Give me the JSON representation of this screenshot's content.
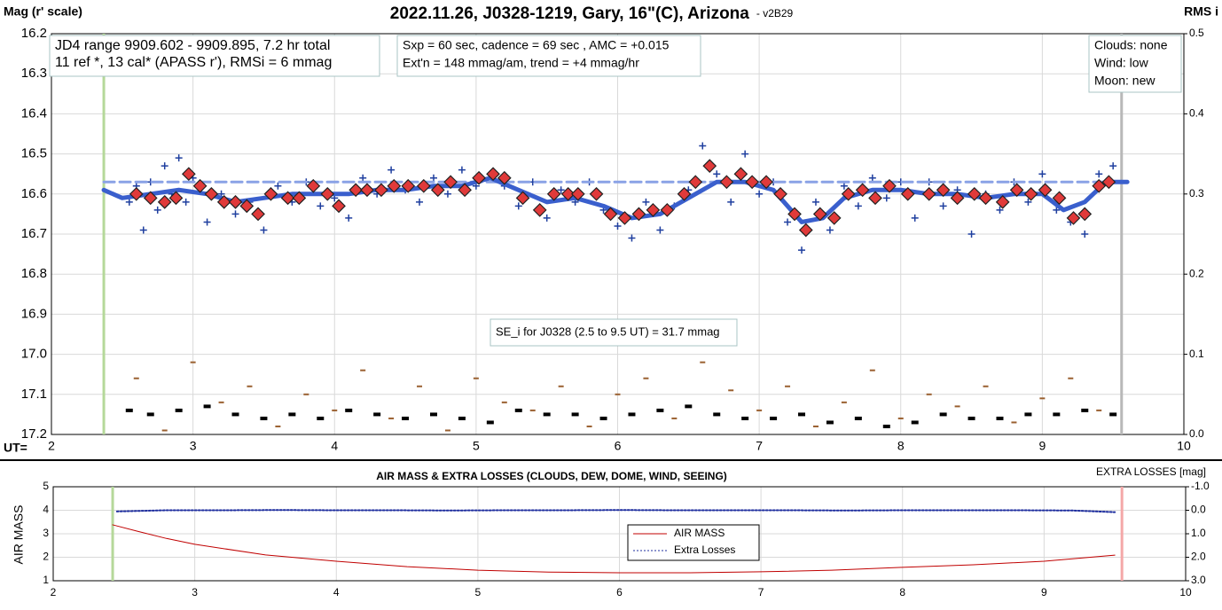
{
  "chart_data": [
    {
      "type": "scatter",
      "title": "2022.11.26, J0328-1219, Gary, 16\"(C), Arizona",
      "subtitle": "- v2B29",
      "ylabel": "Mag (r' scale)",
      "y2label": "RMS i",
      "xlabel": "UT=",
      "xlim": [
        2,
        10
      ],
      "xticks": [
        2,
        3,
        4,
        5,
        6,
        7,
        8,
        9,
        10
      ],
      "ylim": [
        16.2,
        17.2
      ],
      "y_inverted": true,
      "yticks": [
        16.2,
        16.3,
        16.4,
        16.5,
        16.6,
        16.7,
        16.8,
        16.9,
        {
          "value": 17,
          "label": "17.0"
        },
        17.1,
        17.2
      ],
      "y2lim": [
        0,
        0.5
      ],
      "y2ticks": [
        {
          "value": 0,
          "label": "0.0"
        },
        0.1,
        0.2,
        0.3,
        0.4,
        0.5
      ],
      "grid": true,
      "vlines": [
        {
          "x": 2.37,
          "color": "#b5d89a"
        },
        {
          "x": 9.56,
          "color": "#b8b8b8"
        }
      ],
      "annotations": [
        {
          "lines": [
            "JD4 range 9909.602 - 9909.895, 7.2 hr total",
            "11 ref *, 13 cal*  (APASS r'), RMSi = 6 mmag"
          ]
        },
        {
          "lines": [
            "Sxp = 60 sec, cadence = 69 sec , AMC = +0.015",
            "Ext'n = 148 mmag/am, trend = +4 mmag/hr"
          ]
        },
        {
          "lines": [
            "Clouds: none",
            "Wind:  low",
            "Moon: new"
          ]
        },
        {
          "lines": [
            "SE_i for J0328 (2.5 to 9.5 UT) = 31.7 mmag"
          ]
        }
      ],
      "series": [
        {
          "style": "cross",
          "color": "#1f3f9f",
          "x": [
            2.55,
            2.6,
            2.65,
            2.7,
            2.75,
            2.8,
            2.85,
            2.9,
            2.95,
            3.0,
            3.1,
            3.2,
            3.3,
            3.4,
            3.5,
            3.6,
            3.7,
            3.8,
            3.9,
            4.0,
            4.1,
            4.2,
            4.3,
            4.4,
            4.5,
            4.6,
            4.7,
            4.8,
            4.9,
            5.0,
            5.1,
            5.2,
            5.3,
            5.4,
            5.5,
            5.6,
            5.7,
            5.8,
            5.9,
            6.0,
            6.1,
            6.2,
            6.3,
            6.4,
            6.5,
            6.6,
            6.7,
            6.8,
            6.9,
            7.0,
            7.1,
            7.2,
            7.3,
            7.4,
            7.5,
            7.6,
            7.7,
            7.8,
            7.9,
            8.0,
            8.1,
            8.2,
            8.3,
            8.4,
            8.5,
            8.6,
            8.7,
            8.8,
            8.9,
            9.0,
            9.1,
            9.2,
            9.3,
            9.4,
            9.5
          ],
          "values": [
            16.62,
            16.58,
            16.69,
            16.57,
            16.64,
            16.53,
            16.6,
            16.51,
            16.62,
            16.56,
            16.67,
            16.6,
            16.65,
            16.62,
            16.69,
            16.58,
            16.62,
            16.57,
            16.63,
            16.61,
            16.66,
            16.56,
            16.6,
            16.54,
            16.59,
            16.62,
            16.56,
            16.6,
            16.54,
            16.58,
            16.55,
            16.58,
            16.63,
            16.57,
            16.66,
            16.59,
            16.62,
            16.57,
            16.64,
            16.68,
            16.71,
            16.62,
            16.69,
            16.63,
            16.59,
            16.48,
            16.55,
            16.62,
            16.5,
            16.6,
            16.57,
            16.67,
            16.74,
            16.62,
            16.69,
            16.58,
            16.63,
            16.56,
            16.61,
            16.57,
            16.66,
            16.57,
            16.63,
            16.59,
            16.7,
            16.6,
            16.64,
            16.57,
            16.62,
            16.55,
            16.64,
            16.67,
            16.7,
            16.55,
            16.53
          ]
        },
        {
          "style": "dashline",
          "color": "#8aa2e6",
          "x": [
            2.37,
            9.6
          ],
          "values": [
            16.57,
            16.57
          ]
        },
        {
          "style": "line",
          "color": "#3a5fcd",
          "x": [
            2.37,
            2.5,
            2.7,
            2.9,
            3.1,
            3.3,
            3.5,
            3.7,
            3.9,
            4.1,
            4.3,
            4.5,
            4.7,
            4.9,
            5.1,
            5.3,
            5.5,
            5.7,
            5.9,
            6.1,
            6.3,
            6.5,
            6.7,
            6.9,
            7.1,
            7.3,
            7.45,
            7.6,
            7.8,
            8.0,
            8.2,
            8.4,
            8.6,
            8.8,
            9.0,
            9.15,
            9.3,
            9.45,
            9.6
          ],
          "values": [
            16.59,
            16.61,
            16.6,
            16.59,
            16.6,
            16.62,
            16.61,
            16.6,
            16.6,
            16.6,
            16.59,
            16.59,
            16.58,
            16.58,
            16.56,
            16.59,
            16.62,
            16.61,
            16.63,
            16.66,
            16.65,
            16.61,
            16.57,
            16.57,
            16.59,
            16.67,
            16.66,
            16.61,
            16.59,
            16.59,
            16.6,
            16.6,
            16.61,
            16.6,
            16.6,
            16.64,
            16.62,
            16.57,
            16.57
          ]
        },
        {
          "style": "diamond",
          "color": "#e03a3a",
          "x": [
            2.6,
            2.7,
            2.8,
            2.88,
            2.97,
            3.05,
            3.13,
            3.22,
            3.3,
            3.38,
            3.46,
            3.55,
            3.67,
            3.75,
            3.85,
            3.95,
            4.03,
            4.15,
            4.23,
            4.33,
            4.42,
            4.52,
            4.63,
            4.73,
            4.82,
            4.92,
            5.02,
            5.12,
            5.2,
            5.33,
            5.45,
            5.55,
            5.65,
            5.72,
            5.85,
            5.95,
            6.05,
            6.15,
            6.25,
            6.35,
            6.47,
            6.55,
            6.65,
            6.77,
            6.87,
            6.95,
            7.05,
            7.15,
            7.25,
            7.33,
            7.43,
            7.53,
            7.63,
            7.73,
            7.82,
            7.92,
            8.05,
            8.2,
            8.3,
            8.4,
            8.52,
            8.6,
            8.72,
            8.82,
            8.92,
            9.02,
            9.12,
            9.22,
            9.3,
            9.4,
            9.47
          ],
          "values": [
            16.6,
            16.61,
            16.62,
            16.61,
            16.55,
            16.58,
            16.6,
            16.62,
            16.62,
            16.63,
            16.65,
            16.6,
            16.61,
            16.61,
            16.58,
            16.6,
            16.63,
            16.59,
            16.59,
            16.59,
            16.58,
            16.58,
            16.58,
            16.59,
            16.57,
            16.59,
            16.56,
            16.55,
            16.56,
            16.61,
            16.64,
            16.6,
            16.6,
            16.6,
            16.6,
            16.65,
            16.66,
            16.65,
            16.64,
            16.64,
            16.6,
            16.57,
            16.53,
            16.57,
            16.55,
            16.57,
            16.57,
            16.6,
            16.65,
            16.69,
            16.65,
            16.66,
            16.6,
            16.59,
            16.61,
            16.58,
            16.6,
            16.6,
            16.59,
            16.61,
            16.6,
            16.61,
            16.62,
            16.59,
            16.6,
            16.59,
            16.61,
            16.66,
            16.65,
            16.58,
            16.57
          ]
        },
        {
          "style": "tick",
          "color": "#9a6030",
          "axis": "y2",
          "x": [
            2.6,
            2.8,
            3.0,
            3.2,
            3.4,
            3.6,
            3.8,
            4.0,
            4.2,
            4.4,
            4.6,
            4.8,
            5.0,
            5.2,
            5.4,
            5.6,
            5.8,
            6.0,
            6.2,
            6.4,
            6.6,
            6.8,
            7.0,
            7.2,
            7.4,
            7.6,
            7.8,
            8.0,
            8.2,
            8.4,
            8.6,
            8.8,
            9.0,
            9.2,
            9.4
          ],
          "values": [
            0.07,
            0.005,
            0.09,
            0.04,
            0.06,
            0.01,
            0.05,
            0.03,
            0.08,
            0.02,
            0.06,
            0.005,
            0.07,
            0.04,
            0.03,
            0.06,
            0.01,
            0.05,
            0.07,
            0.02,
            0.09,
            0.055,
            0.03,
            0.06,
            0.01,
            0.04,
            0.08,
            0.02,
            0.05,
            0.035,
            0.06,
            0.015,
            0.045,
            0.07,
            0.03
          ]
        },
        {
          "style": "block",
          "color": "#000000",
          "axis": "y2",
          "x": [
            2.55,
            2.7,
            2.9,
            3.1,
            3.3,
            3.5,
            3.7,
            3.9,
            4.1,
            4.3,
            4.5,
            4.7,
            4.9,
            5.1,
            5.3,
            5.5,
            5.7,
            5.9,
            6.1,
            6.3,
            6.5,
            6.7,
            6.9,
            7.1,
            7.3,
            7.5,
            7.7,
            7.9,
            8.1,
            8.3,
            8.5,
            8.7,
            8.9,
            9.1,
            9.3,
            9.5
          ],
          "values": [
            0.03,
            0.025,
            0.03,
            0.035,
            0.025,
            0.02,
            0.025,
            0.02,
            0.03,
            0.025,
            0.02,
            0.025,
            0.02,
            0.015,
            0.03,
            0.025,
            0.025,
            0.02,
            0.025,
            0.03,
            0.035,
            0.025,
            0.02,
            0.02,
            0.025,
            0.015,
            0.02,
            0.01,
            0.015,
            0.025,
            0.02,
            0.02,
            0.025,
            0.025,
            0.03,
            0.025
          ]
        }
      ]
    },
    {
      "type": "line",
      "title": "AIR MASS & EXTRA LOSSES (CLOUDS, DEW, DOME, WIND, SEEING)",
      "ylabel": "AIR MASS",
      "y2label": "EXTRA LOSSES [mag]",
      "xlim": [
        2,
        10
      ],
      "xticks": [
        2,
        3,
        4,
        5,
        6,
        7,
        8,
        9,
        10
      ],
      "ylim": [
        1,
        5
      ],
      "yticks": [
        1,
        2,
        3,
        4,
        5
      ],
      "y2lim": [
        -1,
        3
      ],
      "y2_inverted": true,
      "y2ticks": [
        {
          "value": -1,
          "label": "-1.0"
        },
        {
          "value": 0,
          "label": "0.0"
        },
        {
          "value": 1,
          "label": "1.0"
        },
        {
          "value": 2,
          "label": "2.0"
        },
        {
          "value": 3,
          "label": "3.0"
        }
      ],
      "grid": true,
      "vlines": [
        {
          "x": 2.42,
          "color": "#b5d89a"
        },
        {
          "x": 9.55,
          "color": "#f4a8a8"
        }
      ],
      "series": [
        {
          "name": "AIR MASS",
          "style": "line",
          "color": "#c00000",
          "x": [
            2.42,
            2.6,
            2.8,
            3.0,
            3.5,
            4.0,
            4.5,
            5.0,
            5.5,
            6.0,
            6.5,
            7.0,
            7.5,
            8.0,
            8.5,
            9.0,
            9.5
          ],
          "values": [
            3.38,
            3.1,
            2.8,
            2.55,
            2.1,
            1.83,
            1.6,
            1.45,
            1.37,
            1.34,
            1.34,
            1.38,
            1.45,
            1.57,
            1.68,
            1.83,
            2.09
          ]
        },
        {
          "name": "Extra Losses",
          "style": "dotline",
          "color": "#1f2f9f",
          "axis": "y2",
          "x": [
            2.45,
            2.8,
            3.2,
            3.6,
            4.0,
            4.4,
            4.8,
            5.2,
            5.6,
            6.0,
            6.4,
            6.8,
            7.2,
            7.6,
            8.0,
            8.4,
            8.8,
            9.2,
            9.5
          ],
          "values": [
            0.05,
            0.0,
            0.0,
            -0.01,
            0.0,
            0.0,
            0.01,
            0.0,
            0.0,
            -0.01,
            0.0,
            0.0,
            0.0,
            0.01,
            0.0,
            0.0,
            0.0,
            0.01,
            0.08
          ]
        }
      ]
    }
  ]
}
